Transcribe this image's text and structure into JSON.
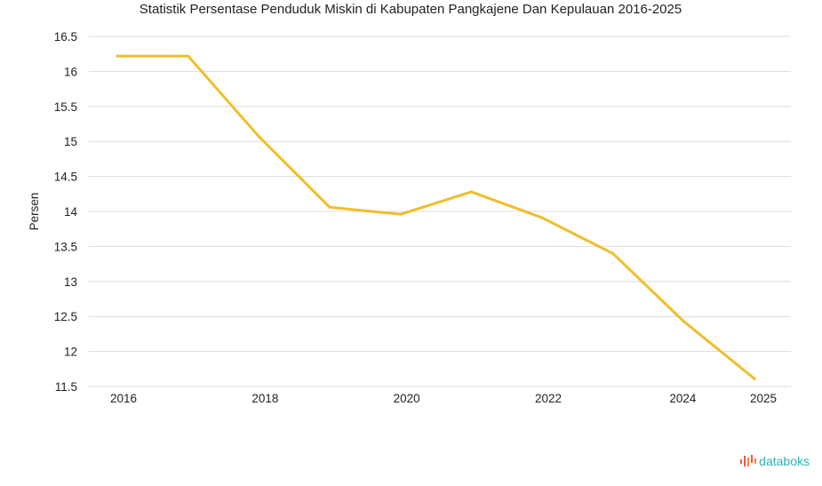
{
  "chart_data": {
    "type": "line",
    "title": "Statistik Persentase Penduduk Miskin di Kabupaten Pangkajene Dan Kepulauan 2016-2025",
    "xlabel": "",
    "ylabel": "Persen",
    "x": [
      2016,
      2017,
      2018,
      2019,
      2020,
      2021,
      2022,
      2023,
      2024,
      2025
    ],
    "x_tick_labels": [
      "2016",
      "2018",
      "2020",
      "2022",
      "2024",
      "2025"
    ],
    "x_tick_values": [
      2016,
      2018,
      2020,
      2022,
      2024,
      2025
    ],
    "y_ticks": [
      11.5,
      12,
      12.5,
      13,
      13.5,
      14,
      14.5,
      15,
      15.5,
      16,
      16.5
    ],
    "y_tick_labels": [
      "11.5",
      "12",
      "12.5",
      "13",
      "13.5",
      "14",
      "14.5",
      "15",
      "15.5",
      "16",
      "16.5"
    ],
    "ylim": [
      11.5,
      16.5
    ],
    "grid": true,
    "series": [
      {
        "values": [
          16.22,
          16.22,
          15.07,
          14.06,
          13.96,
          14.28,
          13.91,
          13.4,
          12.43,
          11.61
        ]
      }
    ],
    "colors": {
      "line": "#f0be2a",
      "grid": "#dcdcdc"
    }
  },
  "brand": {
    "text": "databoks",
    "icon": "databoks-logo-icon"
  }
}
